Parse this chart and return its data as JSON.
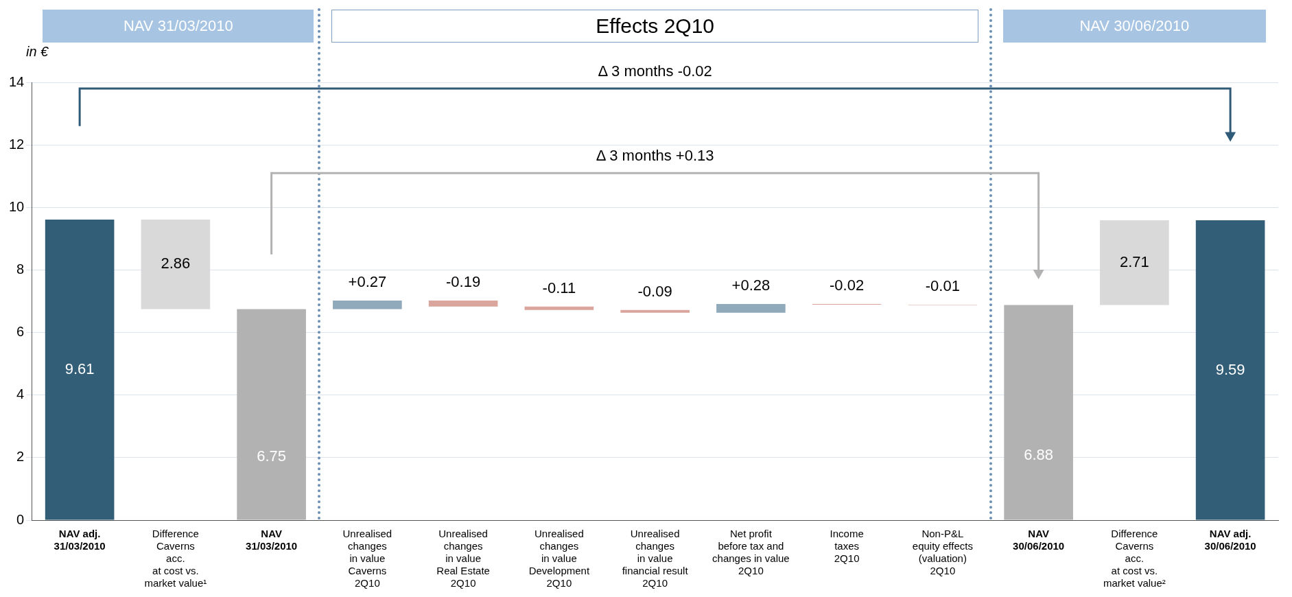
{
  "chart_data": {
    "type": "bar",
    "ylabel": "in €",
    "categories": [
      "NAV adj.\n31/03/2010",
      "Difference\nCaverns\nacc.\nat cost vs.\nmarket value¹",
      "NAV\n31/03/2010",
      "Unrealised\nchanges\nin value\nCaverns\n2Q10",
      "Unrealised\nchanges\nin value\nReal Estate\n2Q10",
      "Unrealised\nchanges\nin value\nDevelopment\n2Q10",
      "Unrealised\nchanges\nin value\nfinancial result\n2Q10",
      "Net profit\nbefore tax and\nchanges in value\n2Q10",
      "Income\ntaxes\n2Q10",
      "Non-P&L\nequity effects\n(valuation)\n2Q10",
      "NAV\n30/06/2010",
      "Difference\nCaverns\nacc.\nat cost vs.\nmarket value²",
      "NAV adj.\n30/06/2010"
    ],
    "values": [
      9.61,
      2.86,
      6.75,
      0.27,
      -0.19,
      -0.11,
      -0.09,
      0.28,
      -0.02,
      -0.01,
      6.88,
      2.71,
      9.59
    ],
    "base": [
      0,
      6.75,
      0,
      6.75,
      7.02,
      6.83,
      6.72,
      6.63,
      6.91,
      6.89,
      0,
      6.88,
      0
    ],
    "colors": [
      "#335e78",
      "#d9d9d9",
      "#b2b2b2",
      "#91aabb",
      "#d9a59c",
      "#d9a59c",
      "#d9a59c",
      "#91aabb",
      "#d9a59c",
      "#d9a59c",
      "#b2b2b2",
      "#d9d9d9",
      "#335e78"
    ],
    "value_labels": [
      "9.61",
      "2.86",
      "6.75",
      "+0.27",
      "-0.19",
      "-0.11",
      "-0.09",
      "+0.28",
      "-0.02",
      "-0.01",
      "6.88",
      "2.71",
      "9.59"
    ],
    "ylim": [
      0,
      14
    ],
    "yticks": [
      0,
      2,
      4,
      6,
      8,
      10,
      12,
      14
    ],
    "grid": "y",
    "legend": false,
    "annotations": [
      "NAV 31/03/2010",
      "Effects 2Q10",
      "NAV 30/06/2010",
      "Δ 3 months -0.02",
      "Δ 3 months +0.13"
    ]
  }
}
